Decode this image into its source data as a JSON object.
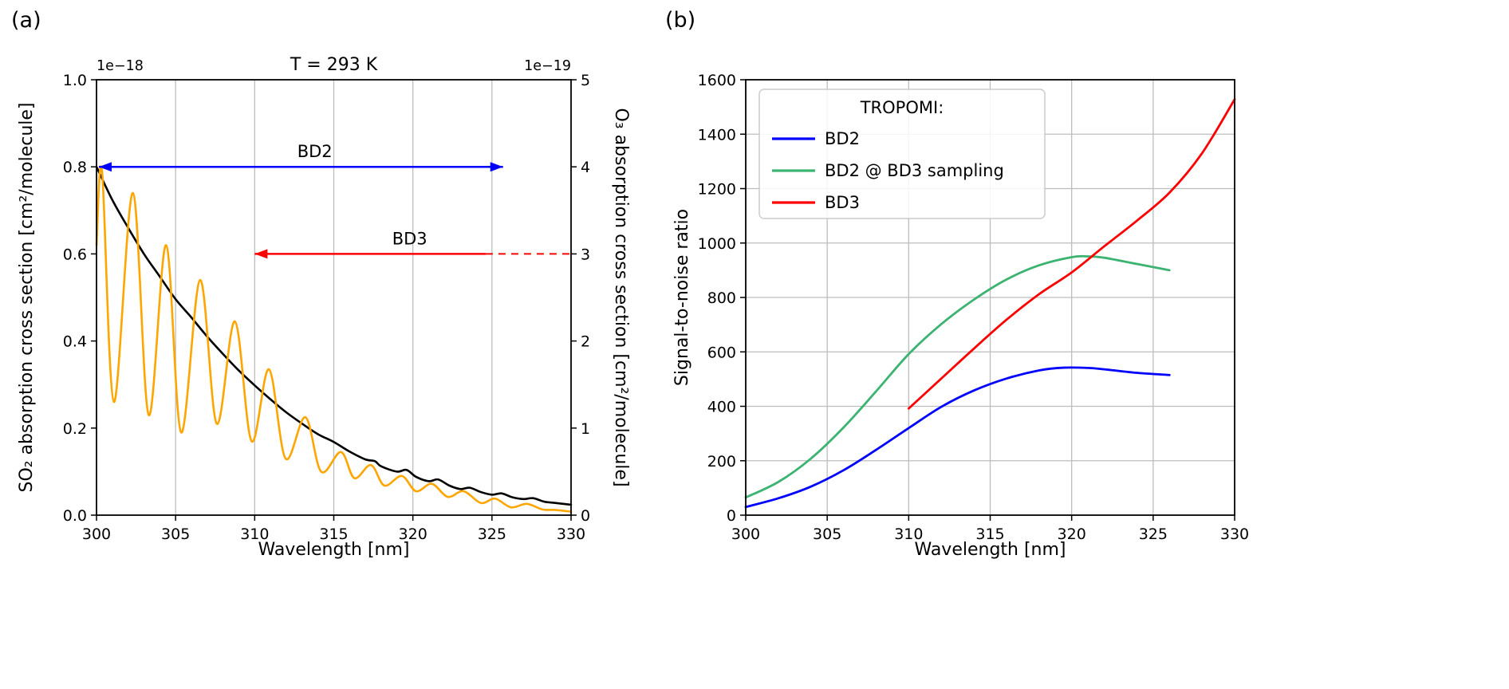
{
  "figure": {
    "background": "#ffffff",
    "panel_labels": [
      "(a)",
      "(b)"
    ]
  },
  "colors": {
    "so2_orange": "#ffa500",
    "o3_black": "#000000",
    "bd2_blue": "#0000ff",
    "bd2_sampling_green": "#3cb371",
    "bd3_red": "#ff0000",
    "grid": "#bdbdbd",
    "spine": "#000000"
  },
  "chart_data": [
    {
      "id": "panel_a",
      "type": "line",
      "panel_label": "(a)",
      "title": "T = 293 K",
      "xlabel": "Wavelength [nm]",
      "xlim": [
        300,
        330
      ],
      "xticks": [
        300,
        305,
        310,
        315,
        320,
        325,
        330
      ],
      "grid": {
        "vertical": true,
        "horizontal": false
      },
      "axes": {
        "left": {
          "label": "SO₂ absorption cross section [cm²/molecule]",
          "label_color": "#ffa500",
          "lim": [
            0,
            1.0
          ],
          "tick_values": [
            0,
            0.2,
            0.4,
            0.6,
            0.8,
            1.0
          ],
          "ticks": [
            "0.0",
            "0.2",
            "0.4",
            "0.6",
            "0.8",
            "1.0"
          ],
          "offset_text": "1e−18"
        },
        "right": {
          "label": "O₃ absorption cross section [cm²/molecule]",
          "label_color": "#000000",
          "lim": [
            0,
            5
          ],
          "tick_values": [
            0,
            1,
            2,
            3,
            4,
            5
          ],
          "ticks": [
            "0",
            "1",
            "2",
            "3",
            "4",
            "5"
          ],
          "offset_text": "1e−19"
        }
      },
      "series": [
        {
          "name": "O3 absorption cross section",
          "axis": "right",
          "color": "#000000",
          "width": 2.6,
          "points": [
            [
              300,
              4.0
            ],
            [
              301,
              3.62
            ],
            [
              302,
              3.3
            ],
            [
              303,
              3.0
            ],
            [
              304,
              2.74
            ],
            [
              305,
              2.48
            ],
            [
              306,
              2.27
            ],
            [
              307,
              2.05
            ],
            [
              308,
              1.85
            ],
            [
              309,
              1.66
            ],
            [
              310,
              1.49
            ],
            [
              311,
              1.33
            ],
            [
              312,
              1.18
            ],
            [
              313,
              1.05
            ],
            [
              314,
              0.93
            ],
            [
              315,
              0.84
            ],
            [
              316,
              0.73
            ],
            [
              317,
              0.64
            ],
            [
              317.6,
              0.62
            ],
            [
              318,
              0.56
            ],
            [
              319,
              0.5
            ],
            [
              319.6,
              0.52
            ],
            [
              320.2,
              0.44
            ],
            [
              321,
              0.39
            ],
            [
              321.6,
              0.41
            ],
            [
              322.3,
              0.34
            ],
            [
              323,
              0.3
            ],
            [
              323.6,
              0.315
            ],
            [
              324.3,
              0.265
            ],
            [
              325,
              0.235
            ],
            [
              325.6,
              0.25
            ],
            [
              326.3,
              0.205
            ],
            [
              327,
              0.185
            ],
            [
              327.6,
              0.195
            ],
            [
              328.3,
              0.155
            ],
            [
              329,
              0.14
            ],
            [
              330,
              0.12
            ]
          ]
        },
        {
          "name": "SO2 absorption cross section",
          "axis": "left",
          "color": "#ffa500",
          "width": 2.6,
          "points": [
            [
              300,
              0.62
            ],
            [
              300.35,
              0.79
            ],
            [
              301.1,
              0.26
            ],
            [
              302.3,
              0.74
            ],
            [
              303.3,
              0.23
            ],
            [
              304.4,
              0.62
            ],
            [
              305.35,
              0.19
            ],
            [
              306.55,
              0.54
            ],
            [
              307.6,
              0.21
            ],
            [
              308.75,
              0.445
            ],
            [
              309.8,
              0.17
            ],
            [
              310.9,
              0.335
            ],
            [
              311.95,
              0.13
            ],
            [
              313.2,
              0.225
            ],
            [
              314.2,
              0.1
            ],
            [
              315.45,
              0.145
            ],
            [
              316.3,
              0.085
            ],
            [
              317.35,
              0.115
            ],
            [
              318.2,
              0.068
            ],
            [
              319.3,
              0.09
            ],
            [
              320.2,
              0.055
            ],
            [
              321.2,
              0.072
            ],
            [
              322.2,
              0.042
            ],
            [
              323.2,
              0.055
            ],
            [
              324.3,
              0.028
            ],
            [
              325.2,
              0.038
            ],
            [
              326.2,
              0.018
            ],
            [
              327.2,
              0.026
            ],
            [
              328.2,
              0.013
            ],
            [
              329,
              0.012
            ],
            [
              330,
              0.008
            ]
          ]
        }
      ],
      "annotations": [
        {
          "label": "BD2",
          "color": "#0000ff",
          "axis": "left",
          "y": 0.8,
          "solid": [
            300.15,
            325.7
          ],
          "heads": "both",
          "label_x": 313.8,
          "label_dy": -12
        },
        {
          "label": "BD3",
          "color": "#ff0000",
          "axis": "left",
          "y": 0.6,
          "solid": [
            310,
            324.6
          ],
          "dashed": [
            324.6,
            330
          ],
          "heads": "start",
          "label_x": 319.8,
          "label_dy": -12
        }
      ]
    },
    {
      "id": "panel_b",
      "type": "line",
      "panel_label": "(b)",
      "title": "",
      "xlabel": "Wavelength [nm]",
      "xlim": [
        300,
        330
      ],
      "xticks": [
        300,
        305,
        310,
        315,
        320,
        325,
        330
      ],
      "grid": {
        "vertical": true,
        "horizontal": true
      },
      "axes": {
        "left": {
          "label": "Signal-to-noise ratio",
          "label_color": "#000000",
          "lim": [
            0,
            1600
          ],
          "tick_values": [
            0,
            200,
            400,
            600,
            800,
            1000,
            1200,
            1400,
            1600
          ],
          "ticks": [
            "0",
            "200",
            "400",
            "600",
            "800",
            "1000",
            "1200",
            "1400",
            "1600"
          ],
          "offset_text": ""
        }
      },
      "legend": {
        "title": "TROPOMI:",
        "entries": [
          {
            "label": "BD2",
            "color": "#0000ff"
          },
          {
            "label": "BD2 @ BD3 sampling",
            "color": "#3cb371"
          },
          {
            "label": "BD3",
            "color": "#ff0000"
          }
        ]
      },
      "series": [
        {
          "name": "BD2",
          "axis": "left",
          "color": "#0000ff",
          "width": 2.8,
          "points": [
            [
              300,
              30
            ],
            [
              302,
              62
            ],
            [
              304,
              105
            ],
            [
              306,
              165
            ],
            [
              308,
              240
            ],
            [
              310,
              320
            ],
            [
              312,
              398
            ],
            [
              314,
              458
            ],
            [
              316,
              502
            ],
            [
              318,
              532
            ],
            [
              319.5,
              542
            ],
            [
              321,
              541
            ],
            [
              322,
              536
            ],
            [
              324,
              523
            ],
            [
              326,
              515
            ]
          ]
        },
        {
          "name": "BD2 @ BD3 sampling",
          "axis": "left",
          "color": "#3cb371",
          "width": 2.8,
          "points": [
            [
              300,
              65
            ],
            [
              302,
              122
            ],
            [
              304,
              208
            ],
            [
              306,
              322
            ],
            [
              308,
              455
            ],
            [
              310,
              592
            ],
            [
              312,
              702
            ],
            [
              314,
              792
            ],
            [
              316,
              866
            ],
            [
              318,
              918
            ],
            [
              320,
              948
            ],
            [
              321,
              951
            ],
            [
              322,
              946
            ],
            [
              324,
              923
            ],
            [
              326,
              900
            ]
          ]
        },
        {
          "name": "BD3",
          "axis": "left",
          "color": "#ff0000",
          "width": 2.8,
          "points": [
            [
              310,
              392
            ],
            [
              312,
              502
            ],
            [
              314,
              612
            ],
            [
              316,
              718
            ],
            [
              318,
              812
            ],
            [
              320,
              892
            ],
            [
              322,
              988
            ],
            [
              324,
              1082
            ],
            [
              326,
              1185
            ],
            [
              328,
              1330
            ],
            [
              330,
              1528
            ]
          ]
        }
      ]
    }
  ]
}
